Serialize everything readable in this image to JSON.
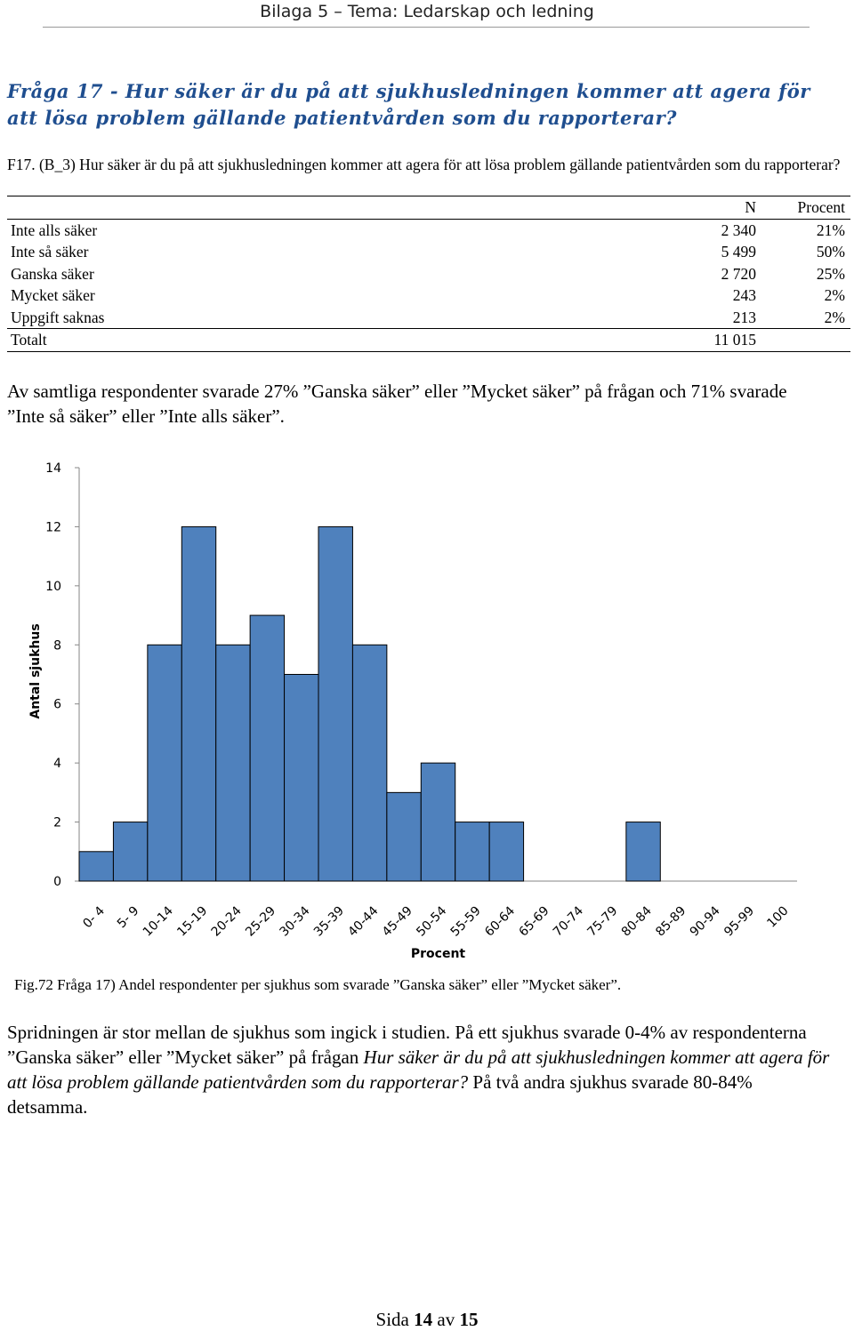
{
  "header": {
    "text": "Bilaga 5 – Tema: Ledarskap och ledning"
  },
  "heading": {
    "text": "Fråga 17 - Hur säker är du på att sjukhusledningen kommer att agera för att lösa problem gällande patientvården som du rapporterar?"
  },
  "question": {
    "text": "F17. (B_3) Hur säker är du på att sjukhusledningen kommer att agera för att lösa problem gällande patientvården som du rapporterar?"
  },
  "table": {
    "col_n": "N",
    "col_pct": "Procent",
    "rows": [
      {
        "label": "Inte alls säker",
        "n": "2 340",
        "pct": "21%"
      },
      {
        "label": "Inte så säker",
        "n": "5 499",
        "pct": "50%"
      },
      {
        "label": "Ganska säker",
        "n": "2 720",
        "pct": "25%"
      },
      {
        "label": "Mycket säker",
        "n": "243",
        "pct": "2%"
      },
      {
        "label": "Uppgift saknas",
        "n": "213",
        "pct": "2%"
      }
    ],
    "total": {
      "label": "Totalt",
      "n": "11 015",
      "pct": ""
    }
  },
  "summary": {
    "text": "Av samtliga respondenter svarade 27% ”Ganska säker” eller ”Mycket säker” på frågan och 71% svarade ”Inte så säker” eller ”Inte alls säker”."
  },
  "chart_data": {
    "type": "bar",
    "title": "",
    "xlabel": "Procent",
    "ylabel": "Antal sjukhus",
    "categories": [
      "0- 4",
      "5- 9",
      "10-14",
      "15-19",
      "20-24",
      "25-29",
      "30-34",
      "35-39",
      "40-44",
      "45-49",
      "50-54",
      "55-59",
      "60-64",
      "65-69",
      "70-74",
      "75-79",
      "80-84",
      "85-89",
      "90-94",
      "95-99",
      "100"
    ],
    "values": [
      1,
      2,
      8,
      12,
      8,
      9,
      7,
      12,
      8,
      3,
      4,
      2,
      2,
      0,
      0,
      0,
      2,
      0,
      0,
      0,
      0
    ],
    "ylim": [
      0,
      14
    ],
    "yticks": [
      0,
      2,
      4,
      6,
      8,
      10,
      12,
      14
    ],
    "bar_color": "#4f81bd",
    "grid": false
  },
  "caption": {
    "text": "Fig.72 Fråga 17) Andel respondenter per sjukhus som svarade ”Ganska säker” eller ”Mycket säker”."
  },
  "conclusion": {
    "part1": "Spridningen är stor mellan de sjukhus som ingick i studien. På ett sjukhus svarade 0-4% av respondenterna ”Ganska säker” eller ”Mycket säker” på frågan ",
    "part2": "Hur säker är du på att sjukhusledningen kommer att agera för att lösa problem gällande patientvården som du rapporterar?",
    "part3": " På två andra sjukhus svarade 80-84% detsamma."
  },
  "footer": {
    "prefix": "Sida ",
    "page": "14",
    "middle": " av ",
    "total": "15"
  }
}
